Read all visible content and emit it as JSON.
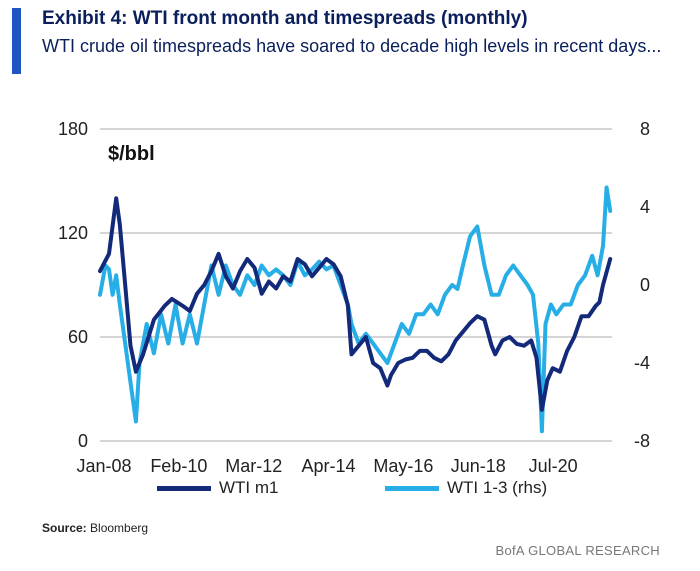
{
  "header": {
    "title": "Exhibit 4: WTI front month and timespreads (monthly)",
    "subtitle": "WTI crude oil timespreads have soared to decade high levels in recent days..."
  },
  "colors": {
    "accent": "#1f56c4",
    "series_m1": "#13297a",
    "series_spread": "#27aee6",
    "grid": "#bcbcbc"
  },
  "footer": {
    "source_label": "Source:",
    "source_value": "Bloomberg",
    "brand": "BofA GLOBAL RESEARCH"
  },
  "chart_data": {
    "type": "line",
    "title": "Exhibit 4: WTI front month and timespreads (monthly)",
    "ylabel": "$/bbl",
    "ylim": [
      0,
      180
    ],
    "y2lim": [
      -8,
      8
    ],
    "yticks": [
      "0",
      "60",
      "120",
      "180"
    ],
    "y2ticks": [
      "-8",
      "-4",
      "0",
      "4",
      "8"
    ],
    "xlim": [
      2008.0,
      2022.25
    ],
    "x_tick_positions": [
      2008.0,
      2010.083,
      2012.167,
      2014.25,
      2016.333,
      2018.417,
      2020.5
    ],
    "x_tick_labels": [
      "Jan-08",
      "Feb-10",
      "Mar-12",
      "Apr-14",
      "May-16",
      "Jun-18",
      "Jul-20"
    ],
    "grid": "horizontal",
    "legend_position": "bottom",
    "series": [
      {
        "name": "WTI m1",
        "axis": "left",
        "x": [
          2008.0,
          2008.25,
          2008.45,
          2008.55,
          2008.7,
          2008.85,
          2009.0,
          2009.2,
          2009.5,
          2009.8,
          2010.0,
          2010.3,
          2010.5,
          2010.7,
          2010.9,
          2011.1,
          2011.3,
          2011.5,
          2011.7,
          2011.9,
          2012.1,
          2012.3,
          2012.5,
          2012.7,
          2012.9,
          2013.1,
          2013.3,
          2013.5,
          2013.7,
          2013.9,
          2014.1,
          2014.3,
          2014.5,
          2014.7,
          2014.9,
          2015.0,
          2015.2,
          2015.4,
          2015.6,
          2015.8,
          2016.0,
          2016.1,
          2016.3,
          2016.5,
          2016.7,
          2016.9,
          2017.1,
          2017.3,
          2017.5,
          2017.7,
          2017.9,
          2018.1,
          2018.3,
          2018.5,
          2018.7,
          2018.9,
          2019.0,
          2019.2,
          2019.4,
          2019.6,
          2019.8,
          2020.0,
          2020.15,
          2020.3,
          2020.45,
          2020.6,
          2020.8,
          2021.0,
          2021.2,
          2021.4,
          2021.6,
          2021.8,
          2021.9,
          2022.0,
          2022.2
        ],
        "values": [
          98,
          108,
          140,
          125,
          90,
          55,
          40,
          50,
          70,
          78,
          82,
          78,
          75,
          85,
          90,
          98,
          108,
          95,
          88,
          98,
          105,
          100,
          85,
          92,
          88,
          95,
          92,
          105,
          102,
          95,
          100,
          105,
          102,
          95,
          78,
          50,
          55,
          60,
          45,
          42,
          32,
          38,
          45,
          47,
          48,
          52,
          52,
          48,
          46,
          50,
          58,
          63,
          68,
          72,
          70,
          55,
          50,
          58,
          60,
          56,
          55,
          58,
          48,
          18,
          35,
          42,
          40,
          52,
          60,
          72,
          72,
          78,
          80,
          90,
          105
        ]
      },
      {
        "name": "WTI 1-3 (rhs)",
        "axis": "right",
        "x": [
          2008.0,
          2008.15,
          2008.25,
          2008.35,
          2008.45,
          2008.55,
          2008.7,
          2008.85,
          2009.0,
          2009.1,
          2009.3,
          2009.5,
          2009.7,
          2009.9,
          2010.1,
          2010.3,
          2010.5,
          2010.7,
          2010.9,
          2011.1,
          2011.3,
          2011.5,
          2011.7,
          2011.9,
          2012.1,
          2012.3,
          2012.5,
          2012.7,
          2012.9,
          2013.1,
          2013.3,
          2013.5,
          2013.7,
          2013.9,
          2014.1,
          2014.3,
          2014.5,
          2014.7,
          2014.9,
          2015.0,
          2015.2,
          2015.4,
          2015.6,
          2015.8,
          2016.0,
          2016.2,
          2016.4,
          2016.6,
          2016.8,
          2017.0,
          2017.2,
          2017.4,
          2017.6,
          2017.8,
          2017.95,
          2018.1,
          2018.3,
          2018.5,
          2018.7,
          2018.9,
          2019.1,
          2019.3,
          2019.5,
          2019.7,
          2019.9,
          2020.05,
          2020.2,
          2020.3,
          2020.4,
          2020.55,
          2020.7,
          2020.9,
          2021.1,
          2021.3,
          2021.5,
          2021.7,
          2021.85,
          2022.0,
          2022.1,
          2022.2
        ],
        "values": [
          -0.5,
          1.0,
          0.8,
          -0.5,
          0.5,
          -1.0,
          -3.0,
          -5.0,
          -7.0,
          -4.0,
          -2.0,
          -3.5,
          -1.5,
          -3.0,
          -1.0,
          -3.0,
          -1.5,
          -3.0,
          -1.0,
          1.0,
          -0.5,
          1.0,
          0.0,
          -0.5,
          0.5,
          0.0,
          1.0,
          0.5,
          0.8,
          0.5,
          0.0,
          1.2,
          0.5,
          0.8,
          1.2,
          0.8,
          1.0,
          0.0,
          -1.0,
          -2.0,
          -3.0,
          -2.5,
          -3.0,
          -3.5,
          -4.0,
          -3.0,
          -2.0,
          -2.5,
          -1.5,
          -1.5,
          -1.0,
          -1.5,
          -0.5,
          0.0,
          -0.2,
          1.0,
          2.5,
          3.0,
          1.0,
          -0.5,
          -0.5,
          0.5,
          1.0,
          0.5,
          0.0,
          -0.5,
          -3.0,
          -7.5,
          -2.0,
          -1.0,
          -1.5,
          -1.0,
          -1.0,
          0.0,
          0.5,
          1.5,
          0.5,
          2.0,
          5.0,
          3.8
        ]
      }
    ]
  }
}
